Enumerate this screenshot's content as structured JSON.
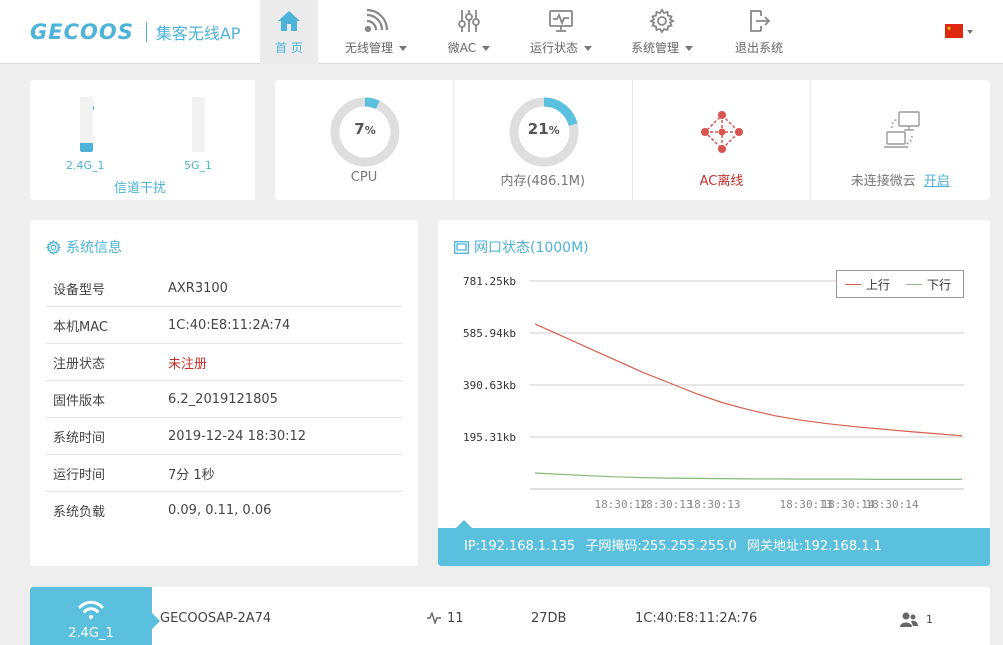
{
  "header": {
    "brand": "GECOOS",
    "subtitle": "集客无线AP",
    "nav": [
      {
        "label": "首 页",
        "icon": "home-icon",
        "active": true
      },
      {
        "label": "无线管理",
        "icon": "wireless-icon",
        "dropdown": true
      },
      {
        "label": "微AC",
        "icon": "sliders-icon",
        "dropdown": true
      },
      {
        "label": "运行状态",
        "icon": "monitor-pulse-icon",
        "dropdown": true
      },
      {
        "label": "系统管理",
        "icon": "gear-icon",
        "dropdown": true
      },
      {
        "label": "退出系统",
        "icon": "logout-icon"
      }
    ],
    "language_flag": "china-flag-icon"
  },
  "channel": {
    "title": "信道干扰",
    "bands": [
      {
        "label": "2.4G_1",
        "value": "15",
        "fill_fraction": 0.16
      },
      {
        "label": "5G_1",
        "value": "0",
        "fill_fraction": 0.0
      }
    ]
  },
  "stats": {
    "cpu": {
      "value": "7",
      "unit": "%",
      "label": "CPU",
      "fraction": 0.07
    },
    "memory": {
      "value": "21",
      "unit": "%",
      "label": "内存(486.1M)",
      "fraction": 0.21
    },
    "ac": {
      "label": "AC离线",
      "icon": "ac-topology-icon"
    },
    "cloud": {
      "label": "未连接微云",
      "link": "开启",
      "icon": "cloud-connect-icon"
    }
  },
  "system_info": {
    "title": "系统信息",
    "rows": [
      {
        "key": "设备型号",
        "value": "AXR3100"
      },
      {
        "key": "本机MAC",
        "value": "1C:40:E8:11:2A:74"
      },
      {
        "key": "注册状态",
        "value": "未注册"
      },
      {
        "key": "固件版本",
        "value": "6.2_2019121805"
      },
      {
        "key": "系统时间",
        "value": "2019-12-24 18:30:12"
      },
      {
        "key": "运行时间",
        "value": "7分 1秒"
      },
      {
        "key": "系统负载",
        "value": "0.09, 0.11, 0.06"
      }
    ]
  },
  "network": {
    "title": "网口状态(1000M)",
    "footer": {
      "ip": "IP:192.168.1.135",
      "mask": "子网掩码:255.255.255.0",
      "gateway": "网关地址:192.168.1.1"
    }
  },
  "chart_data": {
    "type": "line",
    "legend_position": "top-right",
    "grid": true,
    "y_ticks": [
      "781.25kb",
      "585.94kb",
      "390.63kb",
      "195.31kb"
    ],
    "ylim_kb": [
      0,
      781.25
    ],
    "x_ticks": [
      "18:30:12",
      "18:30:13",
      "18:30:13",
      "18:30:13",
      "18:30:14",
      "18:30:14",
      "18:30:14"
    ],
    "series": [
      {
        "name": "上行",
        "color": "#d9604e",
        "values": [
          620,
          575,
          530,
          485,
          440,
          400,
          360,
          325,
          298,
          275,
          258,
          245,
          234,
          225,
          216,
          208,
          200
        ]
      },
      {
        "name": "下行",
        "color": "#88b87a",
        "values": [
          60,
          55,
          50,
          46,
          43,
          41,
          40,
          39,
          38,
          38,
          37,
          37,
          37,
          36,
          36,
          36,
          36
        ]
      }
    ]
  },
  "wifi": {
    "band": "2.4G_1",
    "ssid": "GECOOSAP-2A74",
    "channel": "11",
    "power": "27DB",
    "mac": "1C:40:E8:11:2A:76",
    "clients": "1"
  }
}
